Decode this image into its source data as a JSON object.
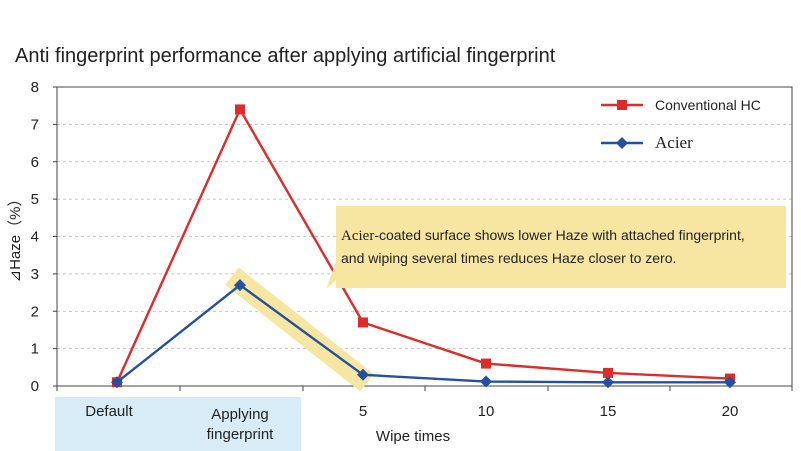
{
  "colors": {
    "conventional": "#e02b2b",
    "acier": "#2350a0",
    "highlight": "#f7e6a2",
    "category_box": "#d7ecf7",
    "grid": "#b5b5b5"
  },
  "chart_data": {
    "type": "line",
    "title": "Anti fingerprint performance after applying artificial fingerprint",
    "xlabel": "Wipe times",
    "ylabel": "⊿Haze（%）",
    "ylim": [
      0,
      8
    ],
    "yticks": [
      "0",
      "1",
      "2",
      "3",
      "4",
      "5",
      "6",
      "7",
      "8"
    ],
    "grid": true,
    "legend_position": "top-right",
    "categories": [
      "Default",
      "Applying fingerprint",
      "5",
      "10",
      "15",
      "20"
    ],
    "category_labels": [
      [
        "Default"
      ],
      [
        "Applying",
        "fingerprint"
      ],
      [
        "5"
      ],
      [
        "10"
      ],
      [
        "15"
      ],
      [
        "20"
      ]
    ],
    "series": [
      {
        "name": "Conventional HC",
        "marker": "square",
        "values": [
          0.1,
          7.4,
          1.7,
          0.6,
          0.35,
          0.2
        ]
      },
      {
        "name": "Acier",
        "marker": "diamond",
        "values": [
          0.1,
          2.7,
          0.3,
          0.12,
          0.1,
          0.1
        ]
      }
    ],
    "annotation": {
      "brand": "Acier",
      "line1_rest": "-coated surface shows lower Haze with attached fingerprint,",
      "line2": "and wiping several times reduces Haze closer to zero."
    }
  }
}
